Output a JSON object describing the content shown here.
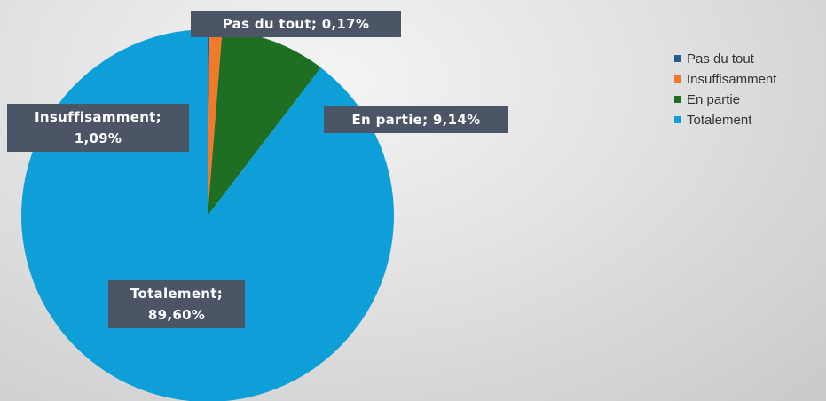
{
  "chart_data": {
    "type": "pie",
    "categories": [
      "Pas du tout",
      "Insuffisamment",
      "En partie",
      "Totalement"
    ],
    "values": [
      0.17,
      1.09,
      9.14,
      89.6
    ],
    "value_labels": [
      "Pas du tout; 0,17%",
      "Insuffisamment;\n1,09%",
      "En partie; 9,14%",
      "Totalement;\n89,60%"
    ],
    "colors": [
      "#1f5f8b",
      "#f07a2a",
      "#1e6e24",
      "#0e9fd8"
    ],
    "legend": "right"
  }
}
